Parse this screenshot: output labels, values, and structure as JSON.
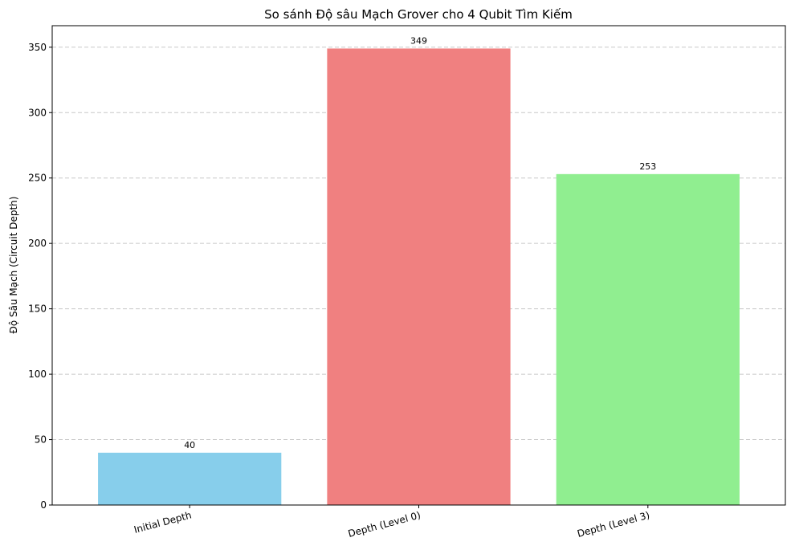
{
  "chart_data": {
    "type": "bar",
    "title": "So sánh Độ sâu Mạch Grover cho 4 Qubit Tìm Kiếm",
    "xlabel": "",
    "ylabel": "Độ Sâu Mạch (Circuit Depth)",
    "categories": [
      "Initial Depth",
      "Depth (Level 0)",
      "Depth (Level 3)"
    ],
    "values": [
      40,
      349,
      253
    ],
    "value_labels": [
      "40",
      "349",
      "253"
    ],
    "colors": [
      "#87CEEB",
      "#F08080",
      "#90EE90"
    ],
    "ylim": [
      0,
      366.45
    ],
    "yticks": [
      0,
      50,
      100,
      150,
      200,
      250,
      300,
      350
    ],
    "grid": "y-dashed",
    "legend": "none"
  }
}
